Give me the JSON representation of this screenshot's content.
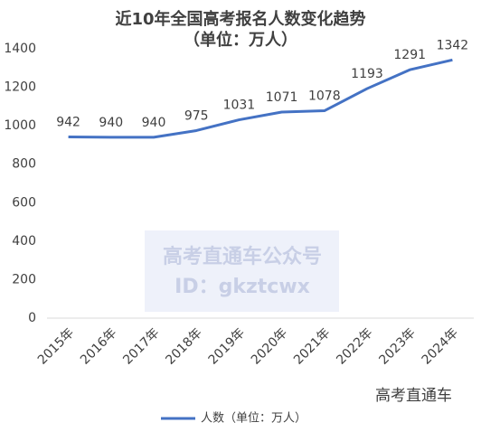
{
  "chart_data": {
    "type": "line",
    "title": "近10年全国高考报名人数变化趋势",
    "subtitle": "（单位：万人）",
    "categories": [
      "2015年",
      "2016年",
      "2017年",
      "2018年",
      "2019年",
      "2020年",
      "2021年",
      "2022年",
      "2023年",
      "2024年"
    ],
    "series": [
      {
        "name": "人数（单位：万人）",
        "color": "#4472c4",
        "values": [
          942,
          940,
          940,
          975,
          1031,
          1071,
          1078,
          1193,
          1291,
          1342
        ]
      }
    ],
    "ylim": [
      0,
      1400
    ],
    "yticks": [
      0,
      200,
      400,
      600,
      800,
      1000,
      1200,
      1400
    ],
    "grid": false,
    "legend": "bottom",
    "annotations": [
      "高考直通车公众号",
      "ID：gkztcwx",
      "高考直通车"
    ]
  }
}
